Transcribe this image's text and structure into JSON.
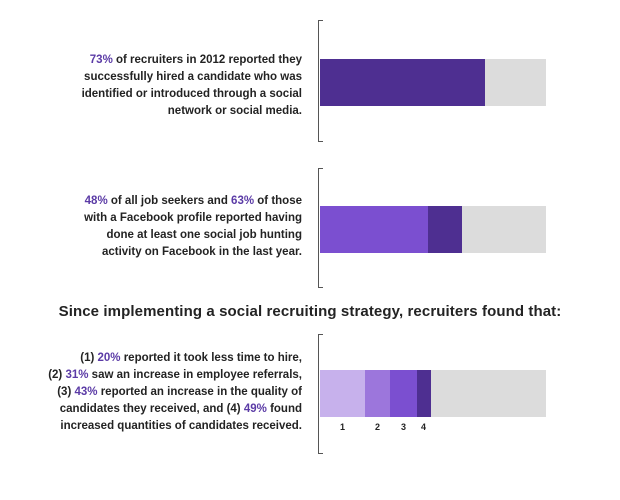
{
  "colors": {
    "dark_purple": "#4e2f91",
    "medium_purple": "#7b4fd0",
    "mid_light_purple": "#9c76dc",
    "light_purple": "#c7b1ec",
    "track_grey": "#dcdcdc",
    "accent_text": "#5b3ba6"
  },
  "block1": {
    "p1_pct": "73%",
    "p1_rest": " of recruiters in 2012 reported they",
    "line2": "successfully hired a candidate who was",
    "line3": "identified or introduced through a social",
    "line4": "network or social media."
  },
  "block2": {
    "p1_pct": "48%",
    "p1_mid": " of all job seekers and ",
    "p1_pct2": "63%",
    "p1_rest": " of those",
    "line2": "with a Facebook profile reported having",
    "line3": "done at least one social job hunting",
    "line4": "activity on Facebook in the last year."
  },
  "heading": "Since implementing a social recruiting strategy, recruiters found that:",
  "block3": {
    "l1_a": "(1) ",
    "l1_pct": "20%",
    "l1_b": " reported it took less time to hire,",
    "l2_a": "(2) ",
    "l2_pct": "31%",
    "l2_b": " saw an increase in employee referrals,",
    "l3_a": "(3) ",
    "l3_pct": "43%",
    "l3_b": " reported an increase in the quality of",
    "l4_a": "candidates they received, and (4) ",
    "l4_pct": "49%",
    "l4_b": " found",
    "line5": "increased quantities of candidates received."
  },
  "chart_data": [
    {
      "type": "bar",
      "orientation": "horizontal",
      "max": 100,
      "series": [
        {
          "name": "",
          "value": 73,
          "color": "#4e2f91"
        }
      ]
    },
    {
      "type": "bar",
      "orientation": "horizontal",
      "stacked": "overlapping",
      "max": 100,
      "series": [
        {
          "name": "",
          "value": 63,
          "color": "#4e2f91"
        },
        {
          "name": "",
          "value": 48,
          "color": "#7b4fd0"
        }
      ]
    },
    {
      "type": "bar",
      "orientation": "horizontal",
      "stacked": "overlapping",
      "max": 100,
      "series": [
        {
          "name": "4",
          "value": 49,
          "color": "#4e2f91"
        },
        {
          "name": "3",
          "value": 43,
          "color": "#7b4fd0"
        },
        {
          "name": "2",
          "value": 31,
          "color": "#9c76dc"
        },
        {
          "name": "1",
          "value": 20,
          "color": "#c7b1ec"
        }
      ]
    }
  ]
}
